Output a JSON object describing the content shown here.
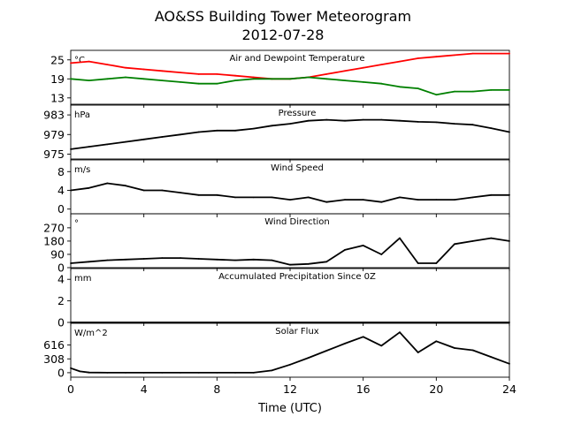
{
  "chart_data": {
    "type": "line",
    "title": "AO&SS Building Tower Meteorogram",
    "subtitle": "2012-07-28",
    "xlabel": "Time (UTC)",
    "xlim": [
      0,
      24
    ],
    "xticks": [
      "0",
      "4",
      "8",
      "12",
      "16",
      "20",
      "24"
    ],
    "panels": [
      {
        "title": "Air and Dewpoint Temperature",
        "unit": "°C",
        "ylim": [
          11,
          28
        ],
        "yticks": [
          13,
          19,
          25
        ],
        "series": [
          {
            "color": "#ff0000",
            "x": [
              0,
              1,
              2,
              3,
              4,
              5,
              6,
              7,
              8,
              9,
              10,
              11,
              12,
              13,
              14,
              15,
              16,
              17,
              18,
              19,
              20,
              21,
              22,
              23,
              24
            ],
            "y": [
              24.0,
              24.5,
              23.5,
              22.5,
              22.0,
              21.5,
              21.0,
              20.5,
              20.5,
              20.0,
              19.5,
              19.0,
              19.0,
              19.5,
              20.5,
              21.5,
              22.5,
              23.5,
              24.5,
              25.5,
              26.0,
              26.5,
              27.0,
              27.0,
              27.0
            ]
          },
          {
            "color": "#008000",
            "x": [
              0,
              1,
              2,
              3,
              4,
              5,
              6,
              7,
              8,
              9,
              10,
              11,
              12,
              13,
              14,
              15,
              16,
              17,
              18,
              19,
              20,
              21,
              22,
              23,
              24
            ],
            "y": [
              19.0,
              18.5,
              19.0,
              19.5,
              19.0,
              18.5,
              18.0,
              17.5,
              17.5,
              18.5,
              19.0,
              19.0,
              19.0,
              19.5,
              19.0,
              18.5,
              18.0,
              17.5,
              16.5,
              16.0,
              14.0,
              15.0,
              15.0,
              15.5,
              15.5
            ]
          }
        ]
      },
      {
        "title": "Pressure",
        "unit": "hPa",
        "ylim": [
          974,
          985
        ],
        "yticks": [
          975,
          979,
          983
        ],
        "series": [
          {
            "color": "#000000",
            "x": [
              0,
              1,
              2,
              3,
              4,
              5,
              6,
              7,
              8,
              9,
              10,
              11,
              12,
              13,
              14,
              15,
              16,
              17,
              18,
              19,
              20,
              21,
              22,
              23,
              24
            ],
            "y": [
              976.0,
              976.5,
              977.0,
              977.5,
              978.0,
              978.5,
              979.0,
              979.5,
              979.8,
              979.8,
              980.2,
              980.8,
              981.2,
              981.8,
              982.0,
              981.8,
              982.0,
              982.0,
              981.8,
              981.6,
              981.5,
              981.2,
              981.0,
              980.3,
              979.5
            ]
          }
        ]
      },
      {
        "title": "Wind Speed",
        "unit": "m/s",
        "ylim": [
          -1,
          10.5
        ],
        "yticks": [
          0,
          4,
          8
        ],
        "series": [
          {
            "color": "#000000",
            "x": [
              0,
              1,
              2,
              3,
              4,
              5,
              6,
              7,
              8,
              9,
              10,
              11,
              12,
              13,
              14,
              15,
              16,
              17,
              18,
              19,
              20,
              21,
              22,
              23,
              24
            ],
            "y": [
              4.0,
              4.5,
              5.5,
              5.0,
              4.0,
              4.0,
              3.5,
              3.0,
              3.0,
              2.5,
              2.5,
              2.5,
              2.0,
              2.5,
              1.5,
              2.0,
              2.0,
              1.5,
              2.5,
              2.0,
              2.0,
              2.0,
              2.5,
              3.0,
              3.0
            ]
          }
        ]
      },
      {
        "title": "Wind Direction",
        "unit": "°",
        "ylim": [
          0,
          365
        ],
        "yticks": [
          0,
          90,
          180,
          270
        ],
        "series": [
          {
            "color": "#000000",
            "x": [
              0,
              1,
              2,
              3,
              4,
              5,
              6,
              7,
              8,
              9,
              10,
              11,
              12,
              13,
              14,
              15,
              16,
              17,
              18,
              19,
              20,
              21,
              22,
              23,
              24
            ],
            "y": [
              30,
              40,
              50,
              55,
              60,
              65,
              65,
              60,
              55,
              50,
              55,
              50,
              20,
              25,
              40,
              120,
              150,
              90,
              200,
              30,
              30,
              160,
              180,
              200,
              180
            ]
          }
        ]
      },
      {
        "title": "Accumulated Precipitation Since 0Z",
        "unit": "mm",
        "ylim": [
          0,
          5
        ],
        "yticks": [
          0,
          2,
          4
        ],
        "series": [
          {
            "color": "#000000",
            "x": [
              0,
              24
            ],
            "y": [
              0,
              0
            ]
          }
        ]
      },
      {
        "title": "Solar Flux",
        "unit": "W/m^2",
        "ylim": [
          -100,
          1100
        ],
        "yticks": [
          0,
          308,
          616
        ],
        "series": [
          {
            "color": "#000000",
            "x": [
              0,
              0.5,
              1,
              2,
              3,
              4,
              5,
              6,
              7,
              8,
              9,
              10,
              11,
              12,
              13,
              14,
              15,
              16,
              17,
              18,
              19,
              20,
              21,
              22,
              23,
              24
            ],
            "y": [
              100,
              30,
              5,
              0,
              0,
              0,
              0,
              0,
              0,
              0,
              0,
              0,
              50,
              180,
              330,
              490,
              650,
              800,
              600,
              900,
              450,
              700,
              550,
              500,
              350,
              200
            ]
          }
        ]
      }
    ]
  }
}
